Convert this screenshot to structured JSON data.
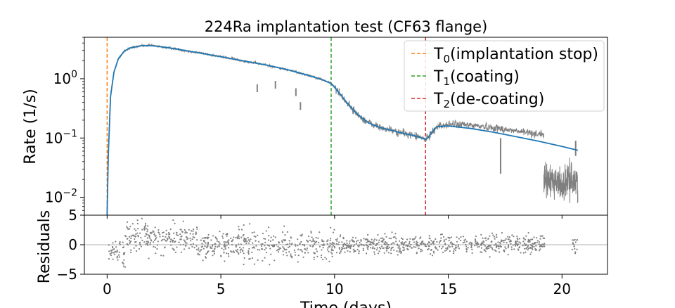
{
  "chart_data": {
    "type": "line",
    "title": "224Ra implantation test (CF63 flange)",
    "xlabel": "Time (days)",
    "xlim": [
      -1,
      22
    ],
    "x_ticks": [
      0,
      5,
      10,
      15,
      20
    ],
    "x_tick_labels": [
      "0",
      "5",
      "10",
      "15",
      "20"
    ],
    "top_panel": {
      "ylabel": "Rate (1/s)",
      "yscale": "log",
      "ylim": [
        0.005,
        5
      ],
      "y_ticks": [
        0.01,
        0.1,
        1
      ],
      "y_tick_labels": [
        {
          "base": "10",
          "exp": "−2"
        },
        {
          "base": "10",
          "exp": "−1"
        },
        {
          "base": "10",
          "exp": "0"
        }
      ],
      "series": [
        {
          "type": "data",
          "color": "#808080",
          "x": [
            0.0,
            0.05,
            0.15,
            0.3,
            0.5,
            0.75,
            1.0,
            1.5,
            2.0,
            2.5,
            3.0,
            3.5,
            4.0,
            5.0,
            6.0,
            7.0,
            8.0,
            9.0,
            9.5,
            9.85,
            10.0,
            10.3,
            10.6,
            11.0,
            11.5,
            12.0,
            12.5,
            13.0,
            13.5,
            14.0,
            14.1,
            14.3,
            14.5,
            15.0,
            16.0,
            17.0,
            17.5,
            18.0,
            19.2
          ],
          "y": [
            0.005,
            0.05,
            0.5,
            1.3,
            2.2,
            2.9,
            3.3,
            3.6,
            3.6,
            3.4,
            3.2,
            2.95,
            2.75,
            2.35,
            2.0,
            1.7,
            1.4,
            1.1,
            0.95,
            0.83,
            0.72,
            0.52,
            0.37,
            0.25,
            0.18,
            0.15,
            0.135,
            0.12,
            0.11,
            0.095,
            0.1,
            0.13,
            0.155,
            0.17,
            0.165,
            0.15,
            0.14,
            0.13,
            0.115
          ]
        },
        {
          "type": "data-gap-segment",
          "color": "#808080",
          "x": [
            19.2,
            19.6,
            20.0,
            20.4,
            20.7
          ],
          "y": [
            0.018,
            0.02,
            0.016,
            0.02,
            0.018
          ]
        },
        {
          "type": "fit",
          "color": "#1f77b4",
          "x": [
            0.0,
            0.05,
            0.15,
            0.3,
            0.5,
            0.75,
            1.0,
            1.5,
            2.0,
            2.5,
            3.0,
            3.5,
            4.0,
            5.0,
            6.0,
            7.0,
            8.0,
            9.0,
            9.5,
            9.85,
            10.0,
            10.3,
            10.6,
            11.0,
            11.5,
            12.0,
            12.5,
            13.0,
            13.5,
            14.0,
            14.1,
            14.3,
            14.5,
            15.0,
            16.0,
            17.0,
            18.0,
            19.0,
            20.0,
            20.7
          ],
          "y": [
            0.005,
            0.05,
            0.5,
            1.3,
            2.2,
            2.9,
            3.3,
            3.6,
            3.6,
            3.4,
            3.2,
            2.95,
            2.75,
            2.35,
            2.0,
            1.7,
            1.4,
            1.1,
            0.95,
            0.83,
            0.72,
            0.52,
            0.37,
            0.25,
            0.18,
            0.15,
            0.135,
            0.12,
            0.11,
            0.095,
            0.1,
            0.13,
            0.155,
            0.16,
            0.145,
            0.125,
            0.105,
            0.088,
            0.072,
            0.062
          ]
        }
      ],
      "vlines": [
        {
          "x": 0.0,
          "color": "#ff7f0e",
          "label": {
            "main": "T",
            "sub": "0",
            "rest": "(implantation stop)"
          }
        },
        {
          "x": 9.85,
          "color": "#2ca02c",
          "label": {
            "main": "T",
            "sub": "1",
            "rest": "(coating)"
          }
        },
        {
          "x": 14.0,
          "color": "#d62728",
          "label": {
            "main": "T",
            "sub": "2",
            "rest": "(de-coating)"
          }
        }
      ],
      "legend": "top-right"
    },
    "bottom_panel": {
      "ylabel": "Residuals",
      "ylim": [
        -5,
        5
      ],
      "y_ticks": [
        -5,
        0,
        5
      ],
      "y_tick_labels": [
        "−5",
        "0",
        "5"
      ],
      "zero_line": true,
      "color": "#808080"
    }
  }
}
